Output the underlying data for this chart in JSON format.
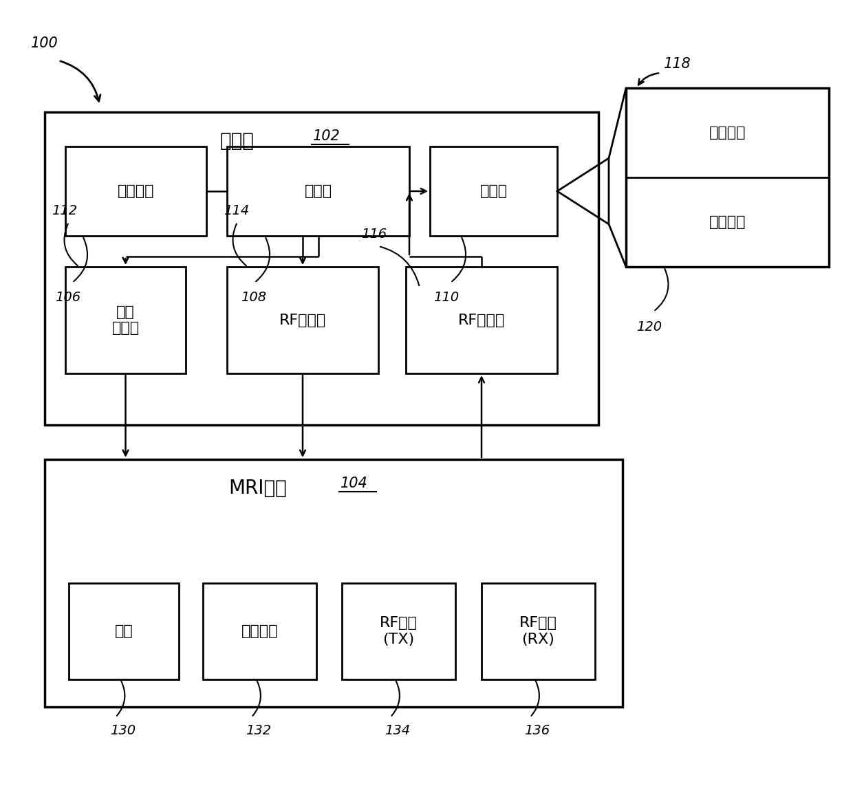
{
  "fig_width": 12.4,
  "fig_height": 11.43,
  "bg_color": "#ffffff",
  "label_100": "100",
  "label_102": "102",
  "label_104": "104",
  "label_106": "106",
  "label_108": "108",
  "label_110": "110",
  "label_112": "112",
  "label_114": "114",
  "label_116": "116",
  "label_118": "118",
  "label_120": "120",
  "label_130": "130",
  "label_132": "132",
  "label_134": "134",
  "label_136": "136",
  "text_computer": "计算机",
  "text_mri": "MRI装置",
  "text_ui": "用户界面",
  "text_processor": "处理器",
  "text_memory": "存储器",
  "text_gradient_ctrl": "梯度\n控制器",
  "text_rf_ctrl": "RF控制器",
  "text_rf_recv": "RF接收器",
  "text_control_prog": "控制程序",
  "text_analysis_prog": "分析程序",
  "text_magnet": "磁体",
  "text_gradient_coil": "梯度线圈",
  "text_rf_coil_tx": "RF线圈\n(TX)",
  "text_rf_coil_rx": "RF线圈\n(RX)"
}
